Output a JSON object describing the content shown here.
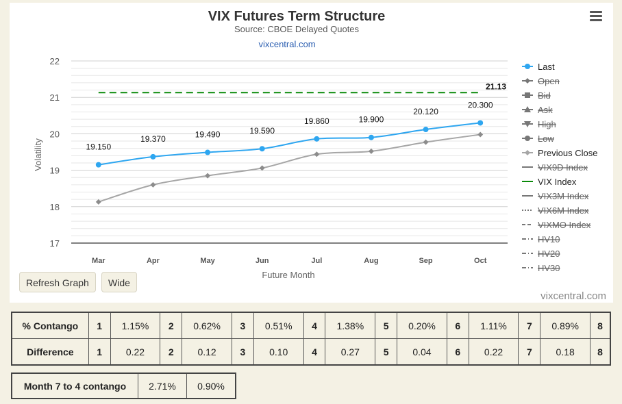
{
  "chart_data": {
    "type": "line",
    "title": "VIX Futures Term Structure",
    "subtitle": "Source: CBOE Delayed Quotes",
    "source_link": "vixcentral.com",
    "xlabel": "Future Month",
    "ylabel": "Volatility",
    "categories": [
      "Mar",
      "Apr",
      "May",
      "Jun",
      "Jul",
      "Aug",
      "Sep",
      "Oct"
    ],
    "yticks": [
      17,
      18,
      19,
      20,
      21,
      22
    ],
    "ylim": [
      17,
      22
    ],
    "series": [
      {
        "name": "Last",
        "color": "#2ea6f0",
        "values": [
          19.15,
          19.37,
          19.49,
          19.59,
          19.86,
          19.9,
          20.12,
          20.3
        ],
        "labels": [
          "19.150",
          "19.370",
          "19.490",
          "19.590",
          "19.860",
          "19.900",
          "20.120",
          "20.300"
        ]
      },
      {
        "name": "Previous Close",
        "color": "#a6a6a6",
        "values": [
          18.13,
          18.6,
          18.85,
          19.06,
          19.44,
          19.52,
          19.77,
          19.98
        ]
      },
      {
        "name": "VIX Index",
        "color": "#0a8a0a",
        "value": 21.13,
        "label": "21.13"
      }
    ],
    "legend": {
      "position": "right",
      "items": [
        {
          "name": "Last",
          "marker": "circle",
          "color": "#2ea6f0",
          "hidden": false
        },
        {
          "name": "Open",
          "marker": "diamond",
          "color": "#555555",
          "hidden": true
        },
        {
          "name": "Bid",
          "marker": "square",
          "color": "#555555",
          "hidden": true
        },
        {
          "name": "Ask",
          "marker": "triangle",
          "color": "#555555",
          "hidden": true
        },
        {
          "name": "High",
          "marker": "triangle-down",
          "color": "#555555",
          "hidden": true
        },
        {
          "name": "Low",
          "marker": "circle",
          "color": "#555555",
          "hidden": true
        },
        {
          "name": "Previous Close",
          "marker": "diamond",
          "color": "#a6a6a6",
          "hidden": false
        },
        {
          "name": "VIX9D Index",
          "marker": "line",
          "color": "#555555",
          "hidden": true
        },
        {
          "name": "VIX Index",
          "marker": "line",
          "color": "#0a8a0a",
          "hidden": false
        },
        {
          "name": "VIX3M Index",
          "marker": "line",
          "color": "#555555",
          "hidden": true
        },
        {
          "name": "VIX6M Index",
          "marker": "dotted",
          "color": "#555555",
          "hidden": true
        },
        {
          "name": "VIXMO Index",
          "marker": "dashed",
          "color": "#555555",
          "hidden": true
        },
        {
          "name": "HV10",
          "marker": "dashdot",
          "color": "#555555",
          "hidden": true
        },
        {
          "name": "HV20",
          "marker": "dashdot",
          "color": "#555555",
          "hidden": true
        },
        {
          "name": "HV30",
          "marker": "dashdot",
          "color": "#555555",
          "hidden": true
        }
      ]
    }
  },
  "buttons": {
    "refresh": "Refresh Graph",
    "wide": "Wide"
  },
  "credit": "vixcentral.com",
  "contango_table": {
    "rows": [
      {
        "label": "% Contango",
        "cells": [
          "1",
          "1.15%",
          "2",
          "0.62%",
          "3",
          "0.51%",
          "4",
          "1.38%",
          "5",
          "0.20%",
          "6",
          "1.11%",
          "7",
          "0.89%",
          "8"
        ]
      },
      {
        "label": "Difference",
        "cells": [
          "1",
          "0.22",
          "2",
          "0.12",
          "3",
          "0.10",
          "4",
          "0.27",
          "5",
          "0.04",
          "6",
          "0.22",
          "7",
          "0.18",
          "8"
        ]
      }
    ]
  },
  "month_contango": {
    "label": "Month 7 to 4 contango",
    "values": [
      "2.71%",
      "0.90%"
    ]
  }
}
